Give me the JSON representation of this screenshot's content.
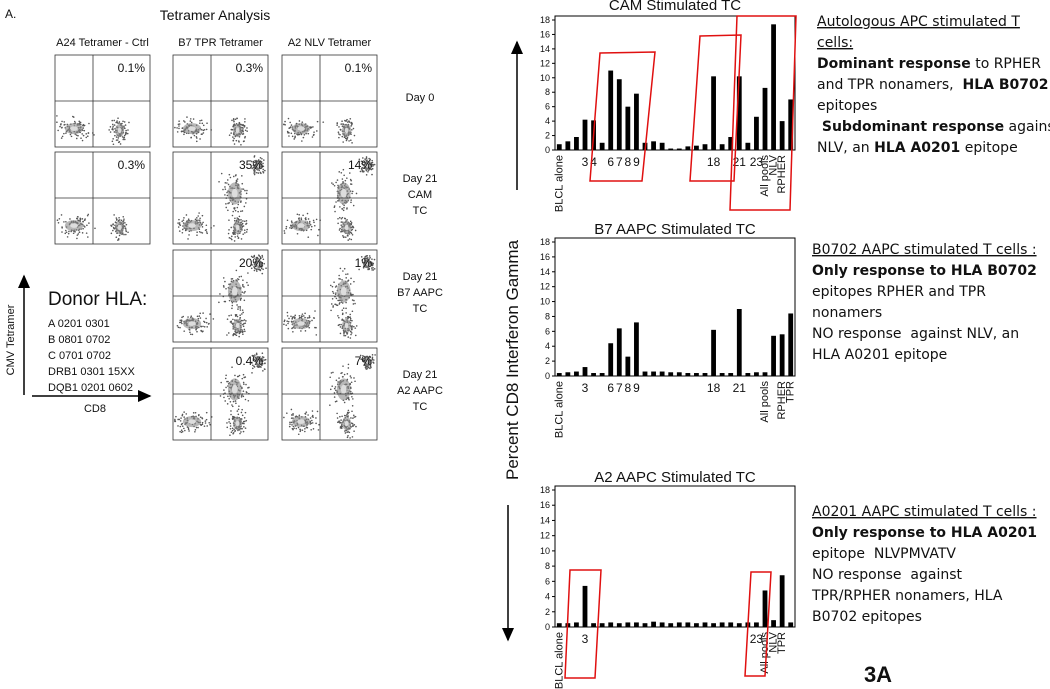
{
  "figure": {
    "panel_label": "A.",
    "title": "Tetramer Analysis",
    "label": "3A",
    "columns": [
      "A24 Tetramer - Ctrl",
      "B7 TPR Tetramer",
      "A2 NLV Tetramer"
    ],
    "rows": [
      {
        "label": [
          "Day 0"
        ],
        "percents": [
          "0.1%",
          "0.3%",
          "0.1%"
        ]
      },
      {
        "label": [
          "Day 21",
          "CAM",
          "TC"
        ],
        "percents": [
          "0.3%",
          "35%",
          "14%"
        ]
      },
      {
        "label": [
          "Day 21",
          "B7 AAPC",
          "TC"
        ],
        "percents": [
          "20%",
          "1%"
        ]
      },
      {
        "label": [
          "Day 21",
          "A2 AAPC",
          "TC"
        ],
        "percents": [
          "0.4%",
          "7%"
        ]
      }
    ],
    "donor_hla": {
      "title": "Donor HLA:",
      "alleles": [
        "A 0201 0301",
        "B 0801 0702",
        "C 0701 0702",
        "DRB1 0301 15XX",
        "DQB1 0201 0602"
      ]
    },
    "y_axis_label": "CMV Tetramer",
    "x_axis_label": "CD8",
    "shared_y_label": "Percent CD8 Interferon Gamma"
  },
  "chart_data": [
    {
      "type": "bar",
      "title": "CAM Stimulated TC",
      "color": "#000000",
      "ylim": [
        0,
        18
      ],
      "yticks": [
        0,
        2,
        4,
        6,
        8,
        10,
        12,
        14,
        16,
        18
      ],
      "categories": [
        "BLCL alone",
        null,
        null,
        "3",
        "4",
        null,
        "6",
        "7",
        "8",
        "9",
        null,
        null,
        null,
        null,
        null,
        null,
        null,
        null,
        "18",
        null,
        null,
        "21",
        null,
        "23",
        "All pools",
        "NLV",
        "RPHER",
        null
      ],
      "values": [
        0.8,
        1.2,
        1.8,
        4.2,
        4.1,
        1.0,
        11,
        9.8,
        6,
        7.8,
        1.0,
        1.2,
        1.0,
        0.2,
        0.2,
        0.5,
        0.6,
        0.8,
        10.2,
        0.8,
        1.8,
        10.2,
        1.0,
        4.6,
        8.6,
        17.4,
        4.0,
        7.0
      ]
    },
    {
      "type": "bar",
      "title": "B7 AAPC Stimulated TC",
      "color": "#000000",
      "ylim": [
        0,
        18
      ],
      "yticks": [
        0,
        2,
        4,
        6,
        8,
        10,
        12,
        14,
        16,
        18
      ],
      "categories": [
        "BLCL alone",
        null,
        null,
        "3",
        null,
        null,
        "6",
        "7",
        "8",
        "9",
        null,
        null,
        null,
        null,
        null,
        null,
        null,
        null,
        "18",
        null,
        null,
        "21",
        null,
        null,
        "All pools",
        null,
        "RPHER",
        "TPR"
      ],
      "values": [
        0.4,
        0.5,
        0.6,
        1.2,
        0.4,
        0.4,
        4.4,
        6.4,
        2.6,
        7.2,
        0.6,
        0.6,
        0.6,
        0.5,
        0.5,
        0.4,
        0.4,
        0.4,
        6.2,
        0.4,
        0.4,
        9.0,
        0.4,
        0.5,
        0.5,
        5.4,
        5.6,
        8.4
      ]
    },
    {
      "type": "bar",
      "title": "A2 AAPC Stimulated TC",
      "color": "#000000",
      "ylim": [
        0,
        18
      ],
      "yticks": [
        0,
        2,
        4,
        6,
        8,
        10,
        12,
        14,
        16,
        18
      ],
      "categories": [
        "BLCL alone",
        null,
        null,
        "3",
        null,
        null,
        null,
        null,
        null,
        null,
        null,
        null,
        null,
        null,
        null,
        null,
        null,
        null,
        null,
        null,
        null,
        null,
        null,
        "23",
        "All pools",
        "NLV",
        "TPR",
        null
      ],
      "values": [
        0.5,
        0.5,
        0.6,
        5.4,
        0.5,
        0.5,
        0.6,
        0.5,
        0.6,
        0.6,
        0.5,
        0.7,
        0.6,
        0.5,
        0.6,
        0.6,
        0.5,
        0.6,
        0.5,
        0.6,
        0.6,
        0.5,
        0.6,
        0.6,
        4.8,
        0.9,
        6.8,
        0.6
      ]
    }
  ],
  "notes": [
    {
      "lines": [
        [
          {
            "text": "Autologous APC stimulated T",
            "style": "underline"
          }
        ],
        [
          {
            "text": "cells:",
            "style": "underline"
          }
        ],
        [
          {
            "text": "Dominant response",
            "style": "bold"
          },
          {
            "text": " to RPHER",
            "style": "normal"
          }
        ],
        [
          {
            "text": "and TPR nonamers,  ",
            "style": "normal"
          },
          {
            "text": "HLA B0702",
            "style": "bold"
          }
        ],
        [
          {
            "text": "epitopes",
            "style": "normal"
          }
        ],
        [
          {
            "text": " Subdominant response",
            "style": "bold"
          },
          {
            "text": " against",
            "style": "normal"
          }
        ],
        [
          {
            "text": "NLV, an ",
            "style": "normal"
          },
          {
            "text": "HLA A0201",
            "style": "bold"
          },
          {
            "text": " epitope",
            "style": "normal"
          }
        ]
      ]
    },
    {
      "lines": [
        [
          {
            "text": "B0702 AAPC stimulated T cells :",
            "style": "underline"
          }
        ],
        [
          {
            "text": "Only response to HLA B0702",
            "style": "bold"
          }
        ],
        [
          {
            "text": "epitopes RPHER and TPR",
            "style": "normal"
          }
        ],
        [
          {
            "text": "nonamers",
            "style": "normal"
          }
        ],
        [
          {
            "text": "NO response  against NLV, an",
            "style": "normal"
          }
        ],
        [
          {
            "text": "HLA A0201 epitope",
            "style": "normal"
          }
        ]
      ]
    },
    {
      "lines": [
        [
          {
            "text": "A0201 AAPC stimulated T cells :",
            "style": "underline"
          }
        ],
        [
          {
            "text": "Only response to HLA A0201",
            "style": "bold"
          }
        ],
        [
          {
            "text": "epitope  NLVPMVATV",
            "style": "normal"
          }
        ],
        [
          {
            "text": "NO response  against",
            "style": "normal"
          }
        ],
        [
          {
            "text": "TPR/RPHER nonamers, HLA",
            "style": "normal"
          }
        ],
        [
          {
            "text": "B0702 epitopes",
            "style": "normal"
          }
        ]
      ]
    }
  ]
}
